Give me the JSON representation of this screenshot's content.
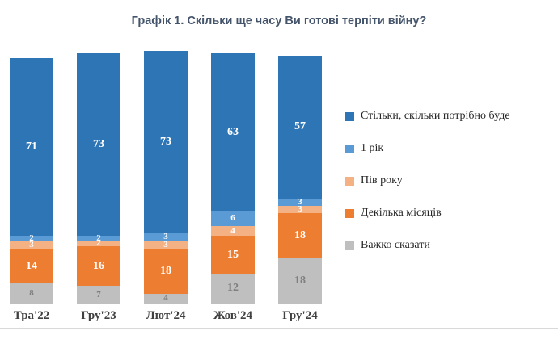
{
  "chart_data": {
    "type": "bar",
    "stacked": true,
    "percent": true,
    "title": "Графік 1. Скільки ще часу Ви готові терпіти війну?",
    "categories": [
      "Тра'22",
      "Гру'23",
      "Лют'24",
      "Жов'24",
      "Гру'24"
    ],
    "series": [
      {
        "name": "Стільки, скільки потрібно буде",
        "color": "#2E75B6",
        "values": [
          71,
          73,
          73,
          63,
          57
        ]
      },
      {
        "name": "1 рік",
        "color": "#5B9BD5",
        "values": [
          2,
          2,
          3,
          6,
          3
        ]
      },
      {
        "name": "Пів року",
        "color": "#F4B183",
        "values": [
          3,
          2,
          3,
          4,
          3
        ]
      },
      {
        "name": "Декілька місяців",
        "color": "#ED7D31",
        "values": [
          14,
          16,
          18,
          15,
          18
        ]
      },
      {
        "name": "Важко сказати",
        "color": "#BFBFBF",
        "label_color": "#7F7F7F",
        "values": [
          8,
          7,
          4,
          12,
          18
        ]
      }
    ],
    "legend_position": "right",
    "ylim": [
      0,
      100
    ],
    "grid": false
  }
}
